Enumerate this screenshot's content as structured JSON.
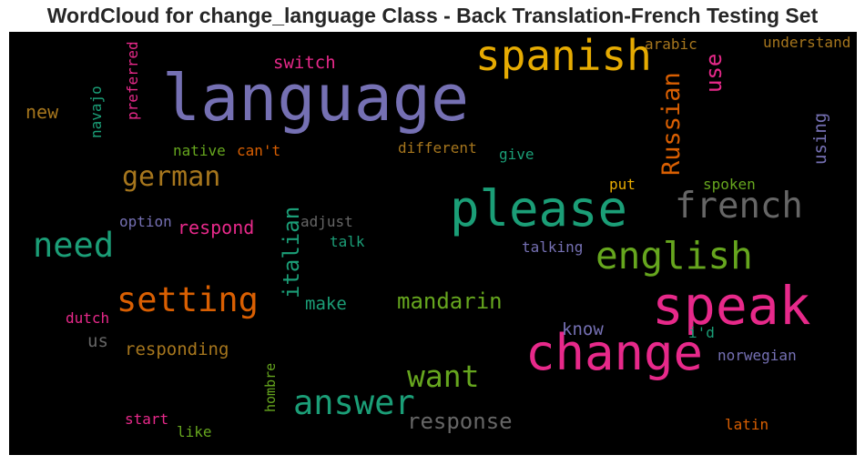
{
  "title": "WordCloud for change_language Class - Back Translation-French Testing Set",
  "colors": {
    "purple": "#7570b3",
    "orange": "#d95f02",
    "green": "#1b9e77",
    "magenta": "#e7298a",
    "lime": "#66a61e",
    "gold": "#e6ab02",
    "brown": "#a6761d",
    "gray": "#666666"
  },
  "words": {
    "language": "language",
    "spanish": "spanish",
    "please": "please",
    "speak": "speak",
    "change": "change",
    "french": "french",
    "english": "english",
    "answer": "answer",
    "setting": "setting",
    "need": "need",
    "german": "german",
    "want": "want",
    "mandarin": "mandarin",
    "russian": "Russian",
    "italian": "italian",
    "response": "response",
    "switch": "switch",
    "use": "use",
    "arabic": "arabic",
    "understand": "understand",
    "preferred": "preferred",
    "navajo": "navajo",
    "new": "new",
    "native": "native",
    "cant": "can't",
    "different": "different",
    "give": "give",
    "using": "using",
    "spoken": "spoken",
    "put": "put",
    "option": "option",
    "respond": "respond",
    "adjust": "adjust",
    "talk": "talk",
    "talking": "talking",
    "make": "make",
    "dutch": "dutch",
    "us": "us",
    "know": "know",
    "id": "i'd",
    "responding": "responding",
    "norwegian": "norwegian",
    "hombre": "hombre",
    "start": "start",
    "like": "like",
    "latin": "latin"
  }
}
